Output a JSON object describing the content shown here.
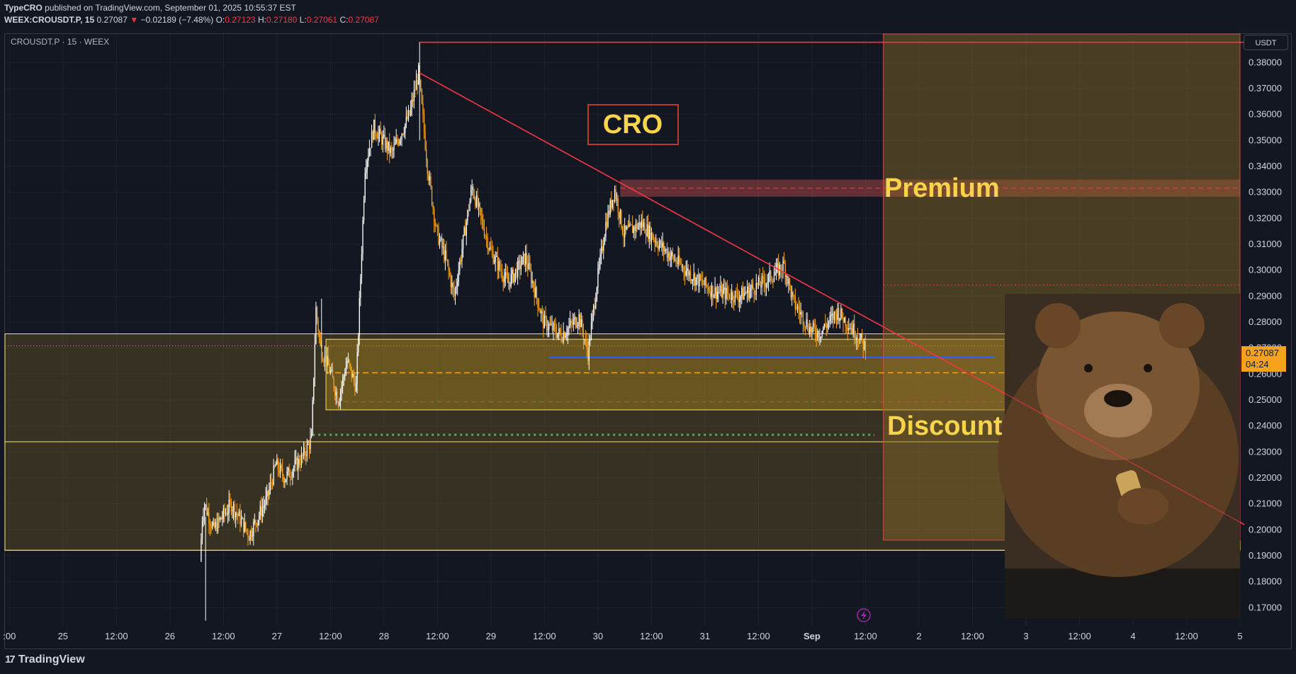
{
  "header": {
    "publisher": "TypeCRO",
    "published_text": "published on TradingView.com, September 01, 2025 10:55:37 EST",
    "symbol_line": "WEEX:CROUSDT.P, 15",
    "last_price": "0.27087",
    "change_arrow": "▼",
    "change": "−0.02189 (−7.48%)",
    "o_label": "O:",
    "o_value": "0.27123",
    "h_label": "H:",
    "h_value": "0.27180",
    "l_label": "L:",
    "l_value": "0.27061",
    "c_label": "C:",
    "c_value": "0.27087"
  },
  "legend_symbol": "CROUSDT.P · 15 · WEEX",
  "currency_button": "USDT",
  "price_label": {
    "price": "0.27087",
    "countdown": "04:24"
  },
  "brand": {
    "logo_mark": "17",
    "name": "TradingView"
  },
  "annotations": {
    "title_box": "CRO",
    "premium": "Premium",
    "discount": "Discount"
  },
  "colors": {
    "background": "#131722",
    "grid": "#1e222d",
    "up_candle": "#ffffff",
    "down_candle": "#f7a21b",
    "trendline": "#f23645",
    "zone_fill": "#8b6d28",
    "zone_line": "#f7e35a",
    "blue_level": "#2962ff",
    "green_level": "#4caf50",
    "price_tag": "#f7a21b",
    "annotation_text": "#f7d44a"
  },
  "chart_data": {
    "type": "candlestick",
    "title": "",
    "y_axis": {
      "ticks": [
        "0.38000",
        "0.37000",
        "0.36000",
        "0.35000",
        "0.34000",
        "0.33000",
        "0.32000",
        "0.31000",
        "0.30000",
        "0.29000",
        "0.28000",
        "0.27000",
        "0.26000",
        "0.25000",
        "0.24000",
        "0.23000",
        "0.22000",
        "0.21000",
        "0.20000",
        "0.19000",
        "0.18000",
        "0.17000"
      ],
      "ylim": [
        0.163,
        0.391
      ]
    },
    "x_axis": {
      "ticks": [
        ":00",
        "25",
        "12:00",
        "26",
        "12:00",
        "27",
        "12:00",
        "28",
        "12:00",
        "29",
        "12:00",
        "30",
        "12:00",
        "31",
        "12:00",
        "Sep",
        "12:00",
        "2",
        "12:00",
        "3",
        "12:00",
        "4",
        "12:00",
        "5"
      ],
      "bold_ticks": [
        "Sep"
      ],
      "range_hours": [
        -1,
        276
      ]
    },
    "price_path": [
      [
        43,
        0.188
      ],
      [
        43.5,
        0.205
      ],
      [
        44,
        0.21
      ],
      [
        46,
        0.2
      ],
      [
        50,
        0.21
      ],
      [
        54,
        0.198
      ],
      [
        58,
        0.212
      ],
      [
        60,
        0.225
      ],
      [
        62,
        0.22
      ],
      [
        66,
        0.228
      ],
      [
        68,
        0.235
      ],
      [
        69,
        0.285
      ],
      [
        70,
        0.27
      ],
      [
        72,
        0.262
      ],
      [
        74,
        0.25
      ],
      [
        76,
        0.265
      ],
      [
        78,
        0.255
      ],
      [
        80,
        0.34
      ],
      [
        82,
        0.355
      ],
      [
        86,
        0.345
      ],
      [
        90,
        0.36
      ],
      [
        92,
        0.376
      ],
      [
        94,
        0.34
      ],
      [
        96,
        0.315
      ],
      [
        98,
        0.305
      ],
      [
        100,
        0.29
      ],
      [
        104,
        0.332
      ],
      [
        108,
        0.308
      ],
      [
        112,
        0.295
      ],
      [
        116,
        0.305
      ],
      [
        120,
        0.28
      ],
      [
        124,
        0.275
      ],
      [
        128,
        0.282
      ],
      [
        130,
        0.268
      ],
      [
        132,
        0.295
      ],
      [
        134,
        0.318
      ],
      [
        136,
        0.331
      ],
      [
        138,
        0.314
      ],
      [
        142,
        0.318
      ],
      [
        146,
        0.31
      ],
      [
        150,
        0.303
      ],
      [
        154,
        0.297
      ],
      [
        158,
        0.292
      ],
      [
        164,
        0.29
      ],
      [
        170,
        0.296
      ],
      [
        174,
        0.302
      ],
      [
        176,
        0.288
      ],
      [
        180,
        0.277
      ],
      [
        182,
        0.276
      ],
      [
        186,
        0.284
      ],
      [
        190,
        0.276
      ],
      [
        192,
        0.2709
      ]
    ],
    "trendline": {
      "from": [
        92,
        0.376
      ],
      "to": [
        277,
        0.202
      ]
    },
    "high_line": {
      "from": [
        92,
        0.3878
      ],
      "to": [
        277,
        0.3878
      ],
      "color": "trendline"
    },
    "levels": [
      {
        "name": "blue-support",
        "price": 0.2664,
        "from_hour": 121,
        "to_hour": 221
      },
      {
        "name": "orange-dashed",
        "price": 0.2605,
        "from_hour": 71,
        "to_hour": 276
      },
      {
        "name": "red-dashed-premium",
        "price": 0.3316,
        "from_hour": 137,
        "to_hour": 276
      },
      {
        "name": "red-dashed-discount",
        "price": 0.2493,
        "from_hour": 75,
        "to_hour": 276
      },
      {
        "name": "green-dotted",
        "price": 0.2366,
        "from_hour": 68,
        "to_hour": 194
      },
      {
        "name": "red-dotted-mid",
        "price": 0.2942,
        "from_hour": 196,
        "to_hour": 276
      }
    ],
    "zones": [
      {
        "name": "range-zone",
        "top": 0.2755,
        "bottom": 0.1921,
        "from_hour": -1,
        "to_hour": 276,
        "mid_line": 0.2339
      },
      {
        "name": "order-block",
        "top": 0.2734,
        "bottom": 0.2462,
        "from_hour": 71,
        "to_hour": 276
      },
      {
        "name": "premium-band",
        "top": 0.3349,
        "bottom": 0.3283,
        "from_hour": 137,
        "to_hour": 276
      },
      {
        "name": "projection-box",
        "top": 0.391,
        "bottom": 0.196,
        "from_hour": 196,
        "to_hour": 276
      }
    ]
  }
}
